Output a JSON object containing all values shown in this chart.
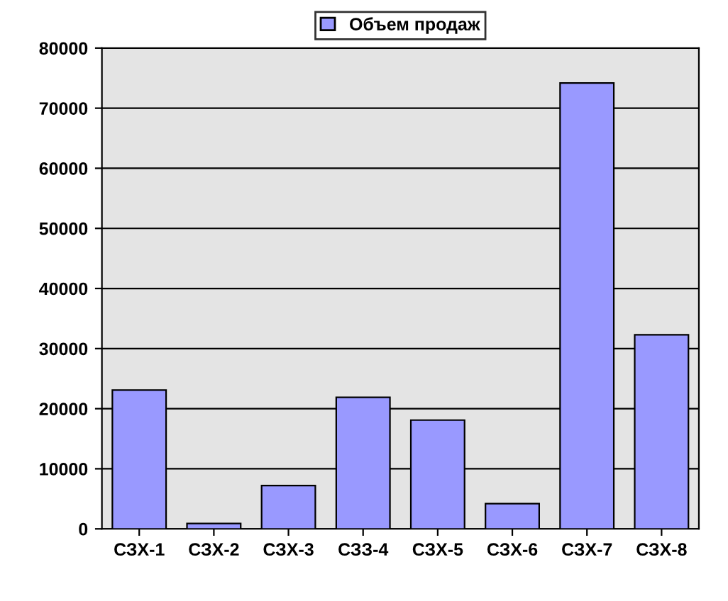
{
  "chart_data": {
    "type": "bar",
    "categories": [
      "СЗХ-1",
      "СЗХ-2",
      "СЗХ-3",
      "СЗЗ-4",
      "СЗХ-5",
      "СЗХ-6",
      "СЗХ-7",
      "СЗХ-8"
    ],
    "series": [
      {
        "name": "Объем продаж",
        "color": "#9999ff",
        "values": [
          23100,
          900,
          7200,
          21900,
          18100,
          4200,
          74200,
          32300
        ]
      }
    ],
    "ylim": [
      0,
      80000
    ],
    "yticks": [
      0,
      10000,
      20000,
      30000,
      40000,
      50000,
      60000,
      70000,
      80000
    ],
    "grid": "y",
    "legend": "top"
  }
}
